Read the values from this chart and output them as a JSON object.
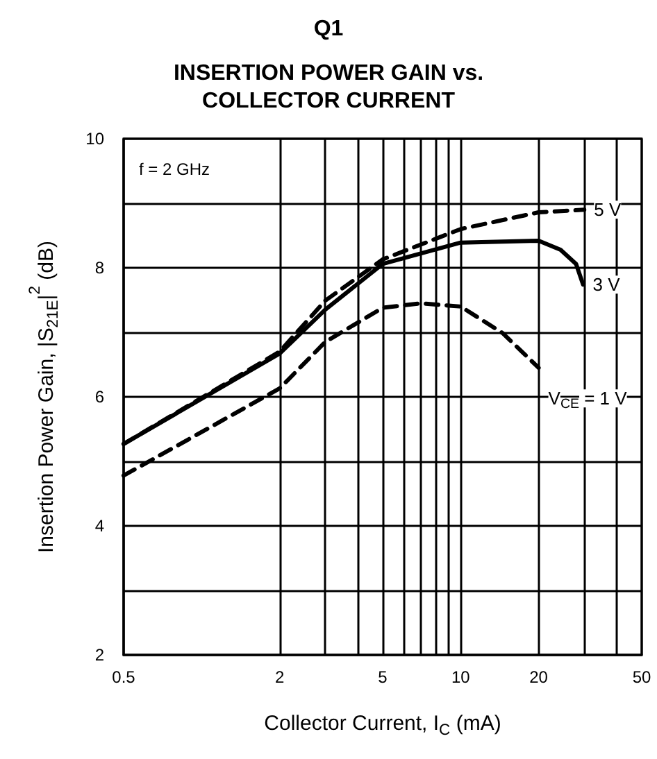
{
  "chart_data": {
    "type": "line",
    "title": "Q1",
    "subtitle": "INSERTION POWER GAIN vs.\nCOLLECTOR CURRENT",
    "xlabel": "Collector Current, I$_{C}$ (mA)",
    "ylabel": "Insertion Power Gain, |S$_{21E}$|$^{2}$ (dB)",
    "log": "x",
    "xlim": [
      0.5,
      50
    ],
    "ylim": [
      2,
      10
    ],
    "xticks": [
      0.5,
      2,
      {
        "value": 3,
        "label": null
      },
      {
        "value": 4,
        "label": null
      },
      5,
      {
        "value": 6,
        "label": null
      },
      {
        "value": 7,
        "label": null
      },
      {
        "value": 8,
        "label": null
      },
      {
        "value": 9,
        "label": null
      },
      10,
      20,
      {
        "value": 30,
        "label": null
      },
      {
        "value": 40,
        "label": null
      },
      50
    ],
    "yticks": [
      2,
      {
        "value": 3,
        "label": null
      },
      4,
      {
        "value": 5,
        "label": null
      },
      6,
      {
        "value": 7,
        "label": null
      },
      8,
      {
        "value": 9,
        "label": null
      },
      10
    ],
    "grid": true,
    "legend": false,
    "marker": "none",
    "annotations": [
      "f = 2 GHz"
    ],
    "series": [
      {
        "name": "5 V",
        "color": "#000000",
        "line_style": "dashed",
        "x": [
          0.5,
          2,
          3,
          5,
          10,
          20,
          30
        ],
        "values": [
          5.27,
          6.7,
          7.49,
          8.13,
          8.6,
          8.86,
          8.9
        ]
      },
      {
        "name": "3 V",
        "color": "#000000",
        "line_style": "solid",
        "x": [
          0.5,
          2,
          3,
          5,
          10,
          20,
          24.3,
          27.9,
          29.7
        ],
        "values": [
          5.27,
          6.67,
          7.35,
          8.06,
          8.39,
          8.42,
          8.28,
          8.06,
          7.74
        ]
      },
      {
        "name": "V$_{CE}$ = 1 V",
        "color": "#000000",
        "line_style": "dashed",
        "x": [
          0.5,
          2,
          3,
          5,
          7,
          10,
          14.5,
          20
        ],
        "values": [
          4.78,
          6.13,
          6.85,
          7.38,
          7.45,
          7.4,
          6.99,
          6.45
        ]
      }
    ]
  }
}
